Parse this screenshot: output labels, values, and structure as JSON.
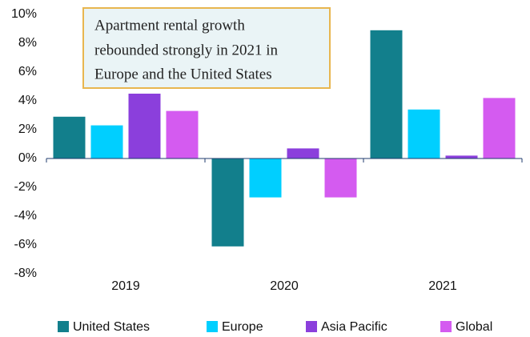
{
  "chart_data": {
    "type": "bar",
    "annotation": [
      "Apartment rental growth",
      "rebounded strongly in 2021 in",
      "Europe and the United States"
    ],
    "categories": [
      "2019",
      "2020",
      "2021"
    ],
    "series": [
      {
        "name": "United States",
        "color": "#127f8c",
        "values": [
          2.9,
          -6.1,
          8.9
        ]
      },
      {
        "name": "Europe",
        "color": "#00cfff",
        "values": [
          2.3,
          -2.7,
          3.4
        ]
      },
      {
        "name": "Asia Pacific",
        "color": "#8b3fdc",
        "values": [
          4.5,
          0.7,
          0.2
        ]
      },
      {
        "name": "Global",
        "color": "#d45bf0",
        "values": [
          3.3,
          -2.7,
          4.2
        ]
      }
    ],
    "ylim": [
      -8,
      10
    ],
    "yticks": [
      {
        "value": 10,
        "label": "10%"
      },
      {
        "value": 8,
        "label": "8%"
      },
      {
        "value": 6,
        "label": "6%"
      },
      {
        "value": 4,
        "label": "4%"
      },
      {
        "value": 2,
        "label": "2%"
      },
      {
        "value": 0,
        "label": "0%"
      },
      {
        "value": -2,
        "label": "-2%"
      },
      {
        "value": -4,
        "label": "-4%"
      },
      {
        "value": -6,
        "label": "-6%"
      },
      {
        "value": -8,
        "label": "-8%"
      }
    ],
    "legend": "bottom"
  }
}
